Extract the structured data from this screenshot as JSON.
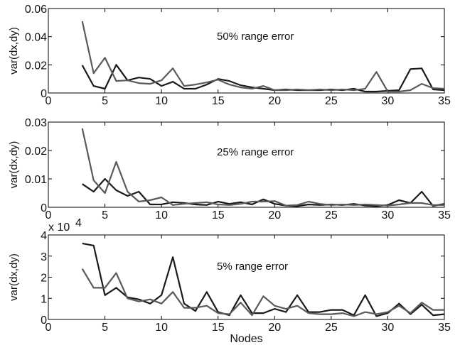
{
  "chart_data": [
    {
      "type": "line",
      "ylabel": "var(dx,dy)",
      "annotation": "50% range error",
      "xlim": [
        0,
        35
      ],
      "ylim": [
        0,
        0.06
      ],
      "xticks": [
        0,
        5,
        10,
        15,
        20,
        25,
        30,
        35
      ],
      "xtick_labels": [
        "0",
        "5",
        "10",
        "15",
        "20",
        "25",
        "30",
        "35"
      ],
      "yticks": [
        0,
        0.02,
        0.04,
        0.06
      ],
      "ytick_labels": [
        "0",
        "0.02",
        "0.04",
        "0.06"
      ],
      "x": [
        3,
        4,
        5,
        6,
        7,
        8,
        9,
        10,
        11,
        12,
        13,
        14,
        15,
        16,
        17,
        18,
        19,
        20,
        21,
        22,
        23,
        24,
        25,
        26,
        27,
        28,
        29,
        30,
        31,
        32,
        33,
        34,
        35
      ],
      "series": [
        {
          "color": "#1a1a1a",
          "values": [
            0.0197,
            0.005,
            0.003,
            0.02,
            0.009,
            0.011,
            0.01,
            0.005,
            0.008,
            0.003,
            0.003,
            0.006,
            0.01,
            0.0085,
            0.0055,
            0.004,
            0.003,
            0.002,
            0.0025,
            0.002,
            0.002,
            0.002,
            0.0025,
            0.002,
            0.003,
            0.001,
            0.001,
            0.0015,
            0.002,
            0.017,
            0.0175,
            0.0025,
            0.002
          ]
        },
        {
          "color": "#5a5a5a",
          "values": [
            0.051,
            0.014,
            0.025,
            0.0085,
            0.009,
            0.007,
            0.0065,
            0.009,
            0.0175,
            0.005,
            0.006,
            0.0075,
            0.0095,
            0.006,
            0.004,
            0.003,
            0.005,
            0.002,
            0.002,
            0.0025,
            0.002,
            0.0025,
            0.002,
            0.0025,
            0.002,
            0.003,
            0.015,
            0.001,
            0.001,
            0.002,
            0.0065,
            0.0035,
            0.003
          ]
        }
      ]
    },
    {
      "type": "line",
      "ylabel": "var(dx,dy)",
      "annotation": "25% range error",
      "xlim": [
        0,
        35
      ],
      "ylim": [
        0,
        0.03
      ],
      "xticks": [
        0,
        5,
        10,
        15,
        20,
        25,
        30,
        35
      ],
      "xtick_labels": [
        "0",
        "5",
        "10",
        "15",
        "20",
        "25",
        "30",
        "35"
      ],
      "yticks": [
        0,
        0.01,
        0.02,
        0.03
      ],
      "ytick_labels": [
        "0",
        "0.01",
        "0.02",
        "0.03"
      ],
      "x": [
        3,
        4,
        5,
        6,
        7,
        8,
        9,
        10,
        11,
        12,
        13,
        14,
        15,
        16,
        17,
        18,
        19,
        20,
        21,
        22,
        23,
        24,
        25,
        26,
        27,
        28,
        29,
        30,
        31,
        32,
        33,
        34,
        35
      ],
      "series": [
        {
          "color": "#1a1a1a",
          "values": [
            0.0082,
            0.0055,
            0.01,
            0.006,
            0.004,
            0.0055,
            0.001,
            0.001,
            0.0018,
            0.0015,
            0.001,
            0.0008,
            0.002,
            0.0012,
            0.0018,
            0.001,
            0.0028,
            0.0012,
            0.0006,
            0.0004,
            0.001,
            0.0008,
            0.001,
            0.0008,
            0.0012,
            0.0006,
            0.0004,
            0.0008,
            0.0025,
            0.0015,
            0.0055,
            0.0005,
            0.0012
          ]
        },
        {
          "color": "#5a5a5a",
          "values": [
            0.0278,
            0.0095,
            0.005,
            0.016,
            0.0055,
            0.002,
            0.0025,
            0.0035,
            0.0008,
            0.0012,
            0.0015,
            0.0018,
            0.001,
            0.0008,
            0.0012,
            0.002,
            0.002,
            0.0022,
            0.0006,
            0.0008,
            0.002,
            0.0012,
            0.0008,
            0.001,
            0.0008,
            0.001,
            0.0008,
            0.0006,
            0.001,
            0.0015,
            0.0015,
            0.0008,
            0.0008
          ]
        }
      ]
    },
    {
      "type": "line",
      "ylabel": "var(dx,dy)",
      "annotation": "5% range error",
      "scale_label": "x 10",
      "scale_exponent": "4",
      "xlabel": "Nodes",
      "xlim": [
        0,
        35
      ],
      "ylim": [
        0,
        4
      ],
      "xticks": [
        0,
        5,
        10,
        15,
        20,
        25,
        30,
        35
      ],
      "xtick_labels": [
        "0",
        "5",
        "10",
        "15",
        "20",
        "25",
        "30",
        "35"
      ],
      "yticks": [
        0,
        1,
        2,
        3,
        4
      ],
      "ytick_labels": [
        "0",
        "1",
        "2",
        "3",
        "4"
      ],
      "x": [
        3,
        4,
        5,
        6,
        7,
        8,
        9,
        10,
        11,
        12,
        13,
        14,
        15,
        16,
        17,
        18,
        19,
        20,
        21,
        22,
        23,
        24,
        25,
        26,
        27,
        28,
        29,
        30,
        31,
        32,
        33,
        34,
        35
      ],
      "series": [
        {
          "color": "#1a1a1a",
          "values": [
            3.6,
            3.5,
            1.15,
            1.5,
            1.05,
            0.95,
            0.75,
            1.15,
            2.95,
            0.75,
            0.4,
            1.3,
            0.35,
            0.2,
            1.15,
            0.3,
            0.3,
            0.5,
            0.35,
            1.15,
            0.35,
            0.35,
            0.45,
            0.45,
            0.2,
            1.15,
            0.15,
            0.3,
            0.75,
            0.25,
            0.7,
            0.2,
            0.25
          ]
        },
        {
          "color": "#5a5a5a",
          "values": [
            2.4,
            1.5,
            1.5,
            2.2,
            1.0,
            0.85,
            0.95,
            0.75,
            1.3,
            0.55,
            0.55,
            0.65,
            0.3,
            0.25,
            0.8,
            0.2,
            1.1,
            0.65,
            0.5,
            0.65,
            0.3,
            0.25,
            0.25,
            0.3,
            0.15,
            0.35,
            0.25,
            0.35,
            0.65,
            0.3,
            0.8,
            0.45,
            0.45
          ]
        }
      ]
    }
  ]
}
